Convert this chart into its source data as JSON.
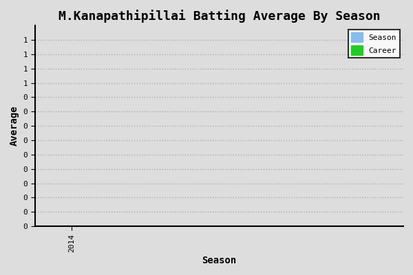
{
  "title": "M.Kanapathipillai Batting Average By Season",
  "xlabel": "Season",
  "ylabel": "Average",
  "x_ticks": [
    2014
  ],
  "x_tick_labels": [
    "2014"
  ],
  "ylim": [
    0.0,
    1.4
  ],
  "ytick_count": 10,
  "xlim": [
    2013.5,
    2018.5
  ],
  "season_bar_color": "#88bbee",
  "career_patch_color": "#22cc22",
  "legend_labels": [
    "Season",
    "Career"
  ],
  "background_color": "#dddddd",
  "plot_bg_color": "#dddddd",
  "grid_color": "#aaaaaa",
  "title_fontsize": 13,
  "axis_label_fontsize": 10,
  "tick_label_fontsize": 8,
  "season_data_x": [
    2014
  ],
  "season_data_y": [
    0.0
  ],
  "career_data_x": [
    2014
  ],
  "career_data_y": [
    0.0
  ]
}
